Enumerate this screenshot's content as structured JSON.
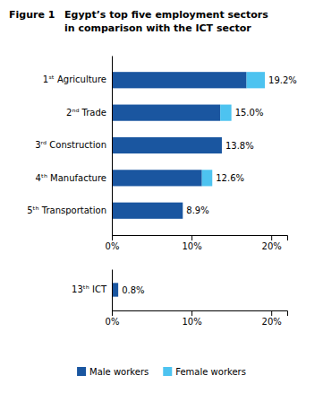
{
  "chart_data": [
    {
      "type": "bar",
      "orientation": "horizontal",
      "stacked": true,
      "title": "Egypt’s top five employment sectors\nin comparison with the ICT sector",
      "annotations": [
        {
          "text": "Figure 1"
        }
      ],
      "categories": [
        "1ˢᵗ Agriculture",
        "2ⁿᵈ Trade",
        "3ʳᵈ Construction",
        "4ᵗʰ Manufacture",
        "5ᵗʰ Transportation"
      ],
      "series": [
        {
          "name": "Male workers",
          "color": "#1a56a0",
          "values": [
            16.9,
            13.6,
            13.8,
            11.3,
            8.9
          ]
        },
        {
          "name": "Female workers",
          "color": "#4dc3f0",
          "values": [
            2.3,
            1.4,
            0.0,
            1.3,
            0.0
          ]
        }
      ],
      "totals": [
        19.2,
        15.0,
        13.8,
        12.6,
        8.9
      ],
      "total_labels": [
        "19.2%",
        "15.0%",
        "13.8%",
        "12.6%",
        "8.9%"
      ],
      "xlim": [
        0,
        22
      ],
      "xticks": [
        {
          "value": 0,
          "label": "0%"
        },
        {
          "value": 10,
          "label": "10%"
        },
        {
          "value": 20,
          "label": "20%"
        }
      ],
      "legend": "bottom",
      "grid": false
    },
    {
      "type": "bar",
      "orientation": "horizontal",
      "categories": [
        "13ᵗʰ ICT"
      ],
      "series": [
        {
          "name": "Male workers",
          "color": "#1a56a0",
          "values": [
            0.8
          ],
          "value_labels": [
            "0.8%"
          ]
        }
      ],
      "data_labels": true,
      "xlim": [
        0,
        22
      ],
      "xticks": [
        {
          "value": 0,
          "label": "0%"
        },
        {
          "value": 10,
          "label": "10%"
        },
        {
          "value": 20,
          "label": "20%"
        }
      ],
      "grid": false
    }
  ]
}
